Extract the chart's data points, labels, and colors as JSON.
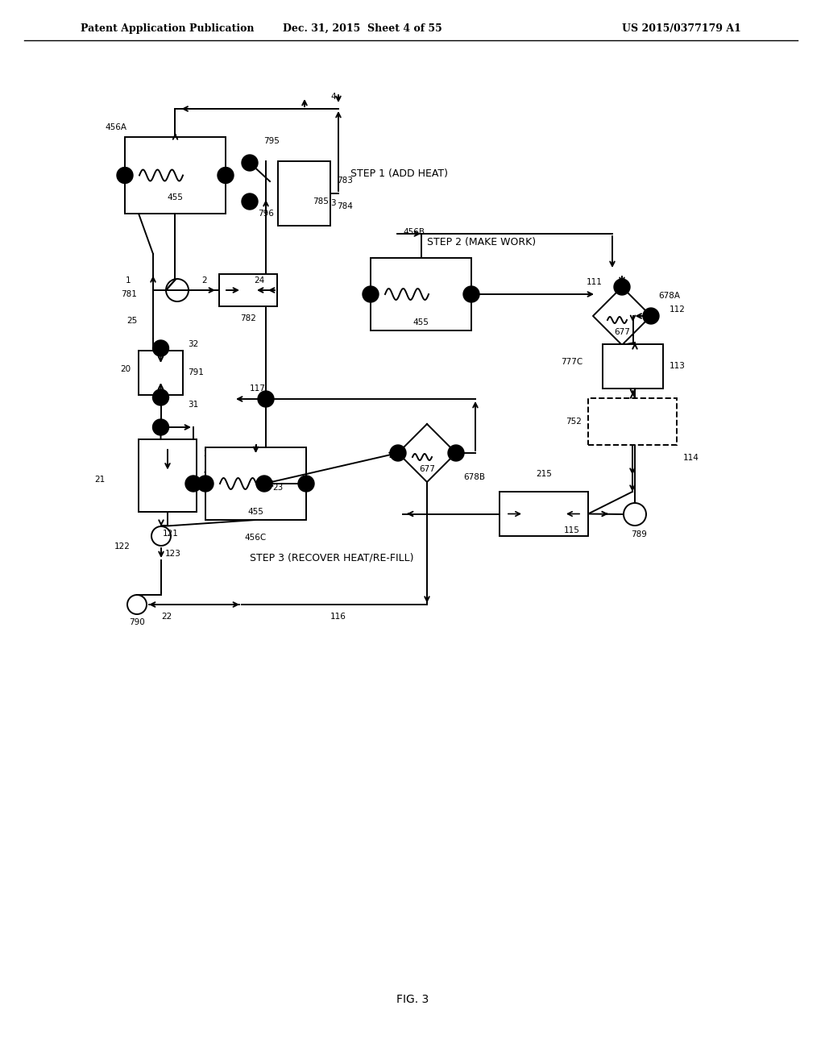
{
  "bg_color": "#ffffff",
  "header_left": "Patent Application Publication",
  "header_mid": "Dec. 31, 2015  Sheet 4 of 55",
  "header_right": "US 2015/0377179 A1",
  "fig_label": "FIG. 3",
  "step1_label": "STEP 1 (ADD HEAT)",
  "step2_label": "STEP 2 (MAKE WORK)",
  "step3_label": "STEP 3 (RECOVER HEAT/RE-FILL)"
}
